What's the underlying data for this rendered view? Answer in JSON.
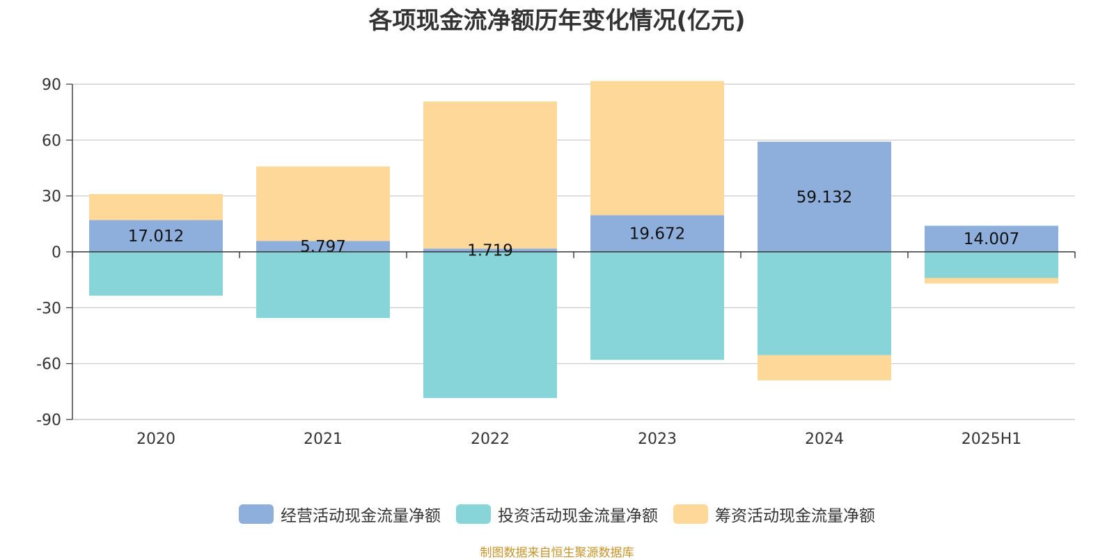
{
  "source_note": "制图数据来自恒生聚源数据库",
  "chart_data": {
    "type": "bar",
    "stacked": true,
    "title": "各项现金流净额历年变化情况(亿元)",
    "xlabel": "",
    "ylabel": "",
    "categories": [
      "2020",
      "2021",
      "2022",
      "2023",
      "2024",
      "2025H1"
    ],
    "ylim": [
      -90,
      90
    ],
    "yticks": [
      90,
      60,
      30,
      0,
      -30,
      -60,
      -90
    ],
    "grid": true,
    "legend_position": "bottom",
    "series": [
      {
        "name": "经营活动现金流量净额",
        "color": "#8eaedb",
        "values": [
          17.012,
          5.797,
          1.719,
          19.672,
          59.132,
          14.007
        ],
        "labels": [
          "17.012",
          "5.797",
          "1.719",
          "19.672",
          "59.132",
          "14.007"
        ]
      },
      {
        "name": "投资活动现金流量净额",
        "color": "#88d5d9",
        "values": [
          -23.5,
          -35.5,
          -78.5,
          -58.0,
          -55.5,
          -14.0
        ]
      },
      {
        "name": "筹资活动现金流量净额",
        "color": "#fdd898",
        "values": [
          14.0,
          40.0,
          79.0,
          72.0,
          -13.5,
          -3.0
        ]
      }
    ]
  }
}
